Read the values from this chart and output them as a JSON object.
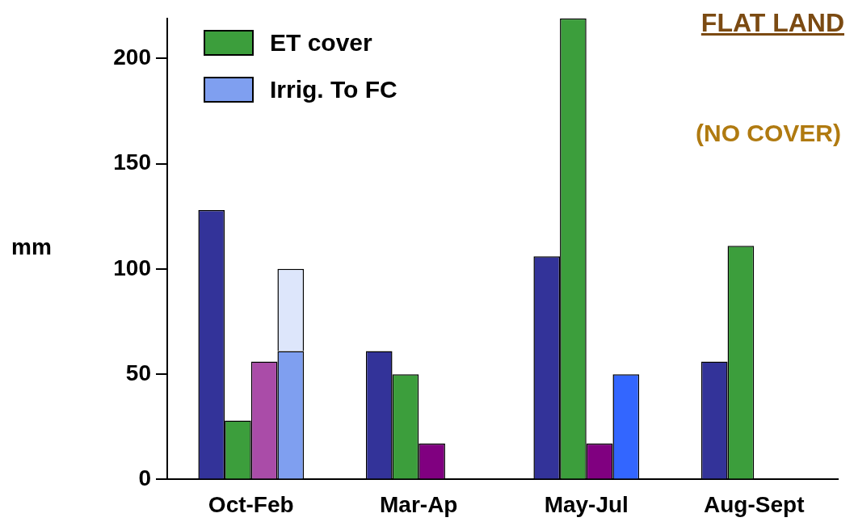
{
  "chart_data": {
    "type": "bar",
    "title": "FLAT  LAND",
    "subtitle": "(NO COVER)",
    "ylabel": "mm",
    "categories": [
      "Oct-Feb",
      "Mar-Ap",
      "May-Jul",
      "Aug-Sept"
    ],
    "series": [
      {
        "color": "#333399",
        "values": [
          128,
          61,
          106,
          56
        ]
      },
      {
        "name": "ET cover",
        "color": "#3c9e3c",
        "values": [
          28,
          50,
          219,
          111
        ]
      },
      {
        "colors": [
          "#aa4ca8",
          "#800080",
          "#800080",
          "#800080"
        ],
        "values": [
          56,
          17,
          17,
          null
        ]
      },
      {
        "name": "Irrig. To FC",
        "color": "#7f9ff0",
        "values": [
          61,
          null,
          null,
          null
        ]
      },
      {
        "color": "#dde6fb",
        "values": [
          39,
          null,
          null,
          null
        ],
        "base": [
          61,
          null,
          null,
          null
        ]
      },
      {
        "color": "#3366ff",
        "values": [
          null,
          null,
          50,
          null
        ]
      }
    ],
    "ylim": [
      0,
      219
    ],
    "yticks": [
      0,
      50,
      100,
      150,
      200
    ],
    "grid": false,
    "legend": "top left"
  }
}
